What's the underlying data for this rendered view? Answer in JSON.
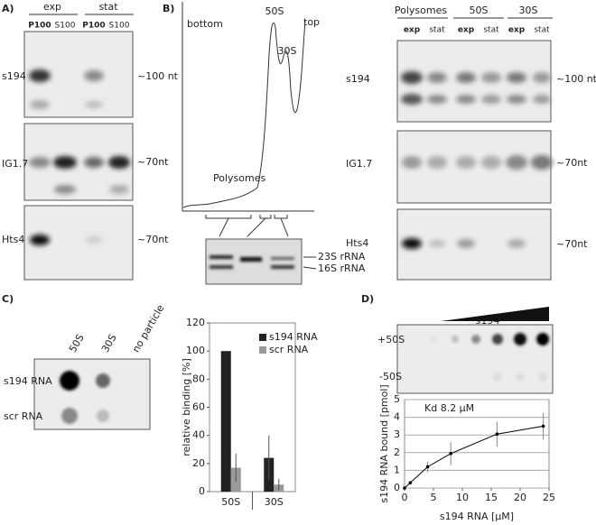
{
  "panel_labels": [
    "A)",
    "B)",
    "C)",
    "D)"
  ],
  "panel_a": {
    "conditions": [
      "exp",
      "stat"
    ],
    "fractions": [
      "P100",
      "S100",
      "P100",
      "S100"
    ],
    "rows": [
      "s194",
      "IG1.7",
      "Hts4"
    ],
    "sizes": [
      "~100 nt",
      "~70nt",
      "~70nt"
    ]
  },
  "panel_b": {
    "profile_labels": [
      "bottom",
      "top",
      "50S",
      "30S",
      "Polysomes"
    ],
    "gel_labels": [
      "23S rRNA",
      "16S rRNA"
    ],
    "fractions": [
      "Polysomes",
      "50S",
      "30S"
    ],
    "conditions": [
      "exp",
      "stat",
      "exp",
      "stat",
      "exp",
      "stat"
    ],
    "rows": [
      "s194",
      "IG1.7",
      "Hts4"
    ],
    "sizes": [
      "~100 nt",
      "~70nt",
      "~70nt"
    ]
  },
  "panel_c": {
    "particles": [
      "50S",
      "30S",
      "no particle"
    ],
    "rows": [
      "s194 RNA",
      "scr RNA"
    ]
  },
  "panel_d": {
    "title": "s194",
    "rows": [
      "+50S",
      "-50S"
    ]
  },
  "chart_data": [
    {
      "type": "bar",
      "y_label": "relative binding [%]",
      "categories": [
        "50S",
        "30S"
      ],
      "series": [
        {
          "name": "s194 RNA",
          "color": "#222222",
          "values": [
            100,
            24
          ],
          "errors": [
            0,
            16
          ]
        },
        {
          "name": "scr RNA",
          "color": "#999999",
          "values": [
            17,
            5
          ],
          "errors": [
            10,
            4
          ]
        }
      ],
      "ylim": [
        0,
        120
      ],
      "yticks": [
        0,
        20,
        40,
        60,
        80,
        100,
        120
      ],
      "legend": "upper right"
    },
    {
      "type": "line",
      "x_label": "s194 RNA [µM]",
      "y_label": "s194 RNA bound [pmol]",
      "annotation": "Kd 8.2 µM",
      "x": [
        0,
        1,
        4,
        8,
        16,
        24
      ],
      "series": [
        {
          "color": "#000000",
          "values": [
            0,
            0.3,
            1.2,
            1.95,
            3.05,
            3.5
          ],
          "errors": [
            0,
            0.1,
            0.3,
            0.65,
            0.7,
            0.75
          ]
        }
      ],
      "xlim": [
        0,
        25
      ],
      "xticks": [
        0,
        5,
        10,
        15,
        20,
        25
      ],
      "ylim": [
        0,
        5
      ],
      "yticks": [
        0,
        1,
        2,
        3,
        4,
        5
      ],
      "grid": true
    }
  ]
}
